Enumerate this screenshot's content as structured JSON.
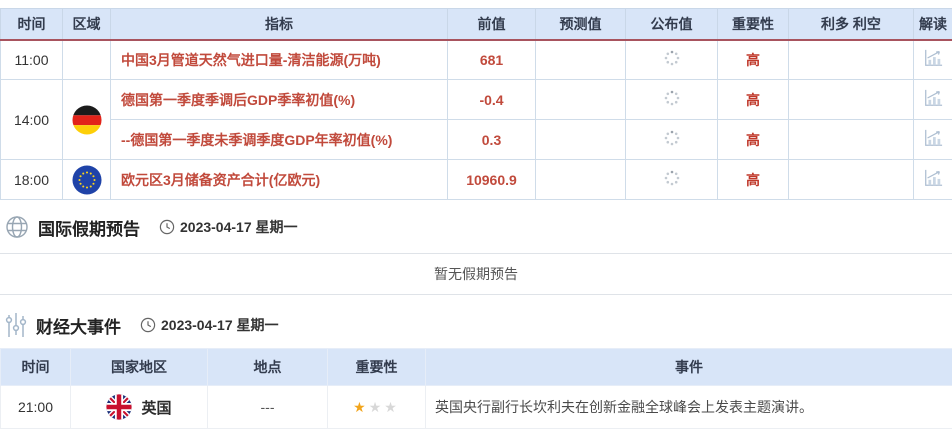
{
  "colors": {
    "header_bg": "#d8e5f8",
    "header_red_line": "#a8535e",
    "indicator_red": "#c14a3c",
    "star_gold": "#f2a51c",
    "star_gray": "#d8d8d8",
    "cell_border": "#cfdce9",
    "icon_blue_gray": "#aebfd2"
  },
  "calendar": {
    "headers": [
      "时间",
      "区域",
      "指标",
      "前值",
      "预测值",
      "公布值",
      "重要性",
      "利多 利空",
      "解读"
    ],
    "rows": [
      {
        "time": "11:00",
        "region_flag": "",
        "indicator": "中国3月管道天然气进口量-清洁能源(万吨)",
        "previous": "681",
        "forecast": "",
        "published": "",
        "published_status": "loading",
        "importance": "高",
        "bull_bear": "",
        "interpretation": "bar-chart-icon"
      },
      {
        "time": "14:00",
        "region_flag": "germany",
        "indicator": "德国第一季度季调后GDP季率初值(%)",
        "previous": "-0.4",
        "forecast": "",
        "published": "",
        "published_status": "loading",
        "importance": "高",
        "bull_bear": "",
        "interpretation": "bar-chart-icon"
      },
      {
        "time": "",
        "region_flag": "",
        "indicator": "--德国第一季度未季调季度GDP年率初值(%)",
        "previous": "0.3",
        "forecast": "",
        "published": "",
        "published_status": "loading",
        "importance": "高",
        "bull_bear": "",
        "interpretation": "bar-chart-icon"
      },
      {
        "time": "18:00",
        "region_flag": "eu",
        "indicator": "欧元区3月储备资产合计(亿欧元)",
        "previous": "10960.9",
        "forecast": "",
        "published": "",
        "published_status": "loading",
        "importance": "高",
        "bull_bear": "",
        "interpretation": "bar-chart-icon"
      }
    ]
  },
  "holiday_section": {
    "icon": "globe-icon",
    "title": "国际假期预告",
    "date_icon": "clock-icon",
    "date": "2023-04-17 星期一",
    "empty_message": "暂无假期预告"
  },
  "events_section": {
    "icon": "sliders-icon",
    "title": "财经大事件",
    "date_icon": "clock-icon",
    "date": "2023-04-17 星期一",
    "table": {
      "headers": [
        "时间",
        "国家地区",
        "地点",
        "重要性",
        "事件"
      ],
      "rows": [
        {
          "time": "21:00",
          "flag": "uk",
          "country": "英国",
          "location": "---",
          "stars": [
            "gold",
            "gray",
            "gray"
          ],
          "event": "英国央行副行长坎利夫在创新金融全球峰会上发表主题演讲。"
        }
      ]
    }
  }
}
